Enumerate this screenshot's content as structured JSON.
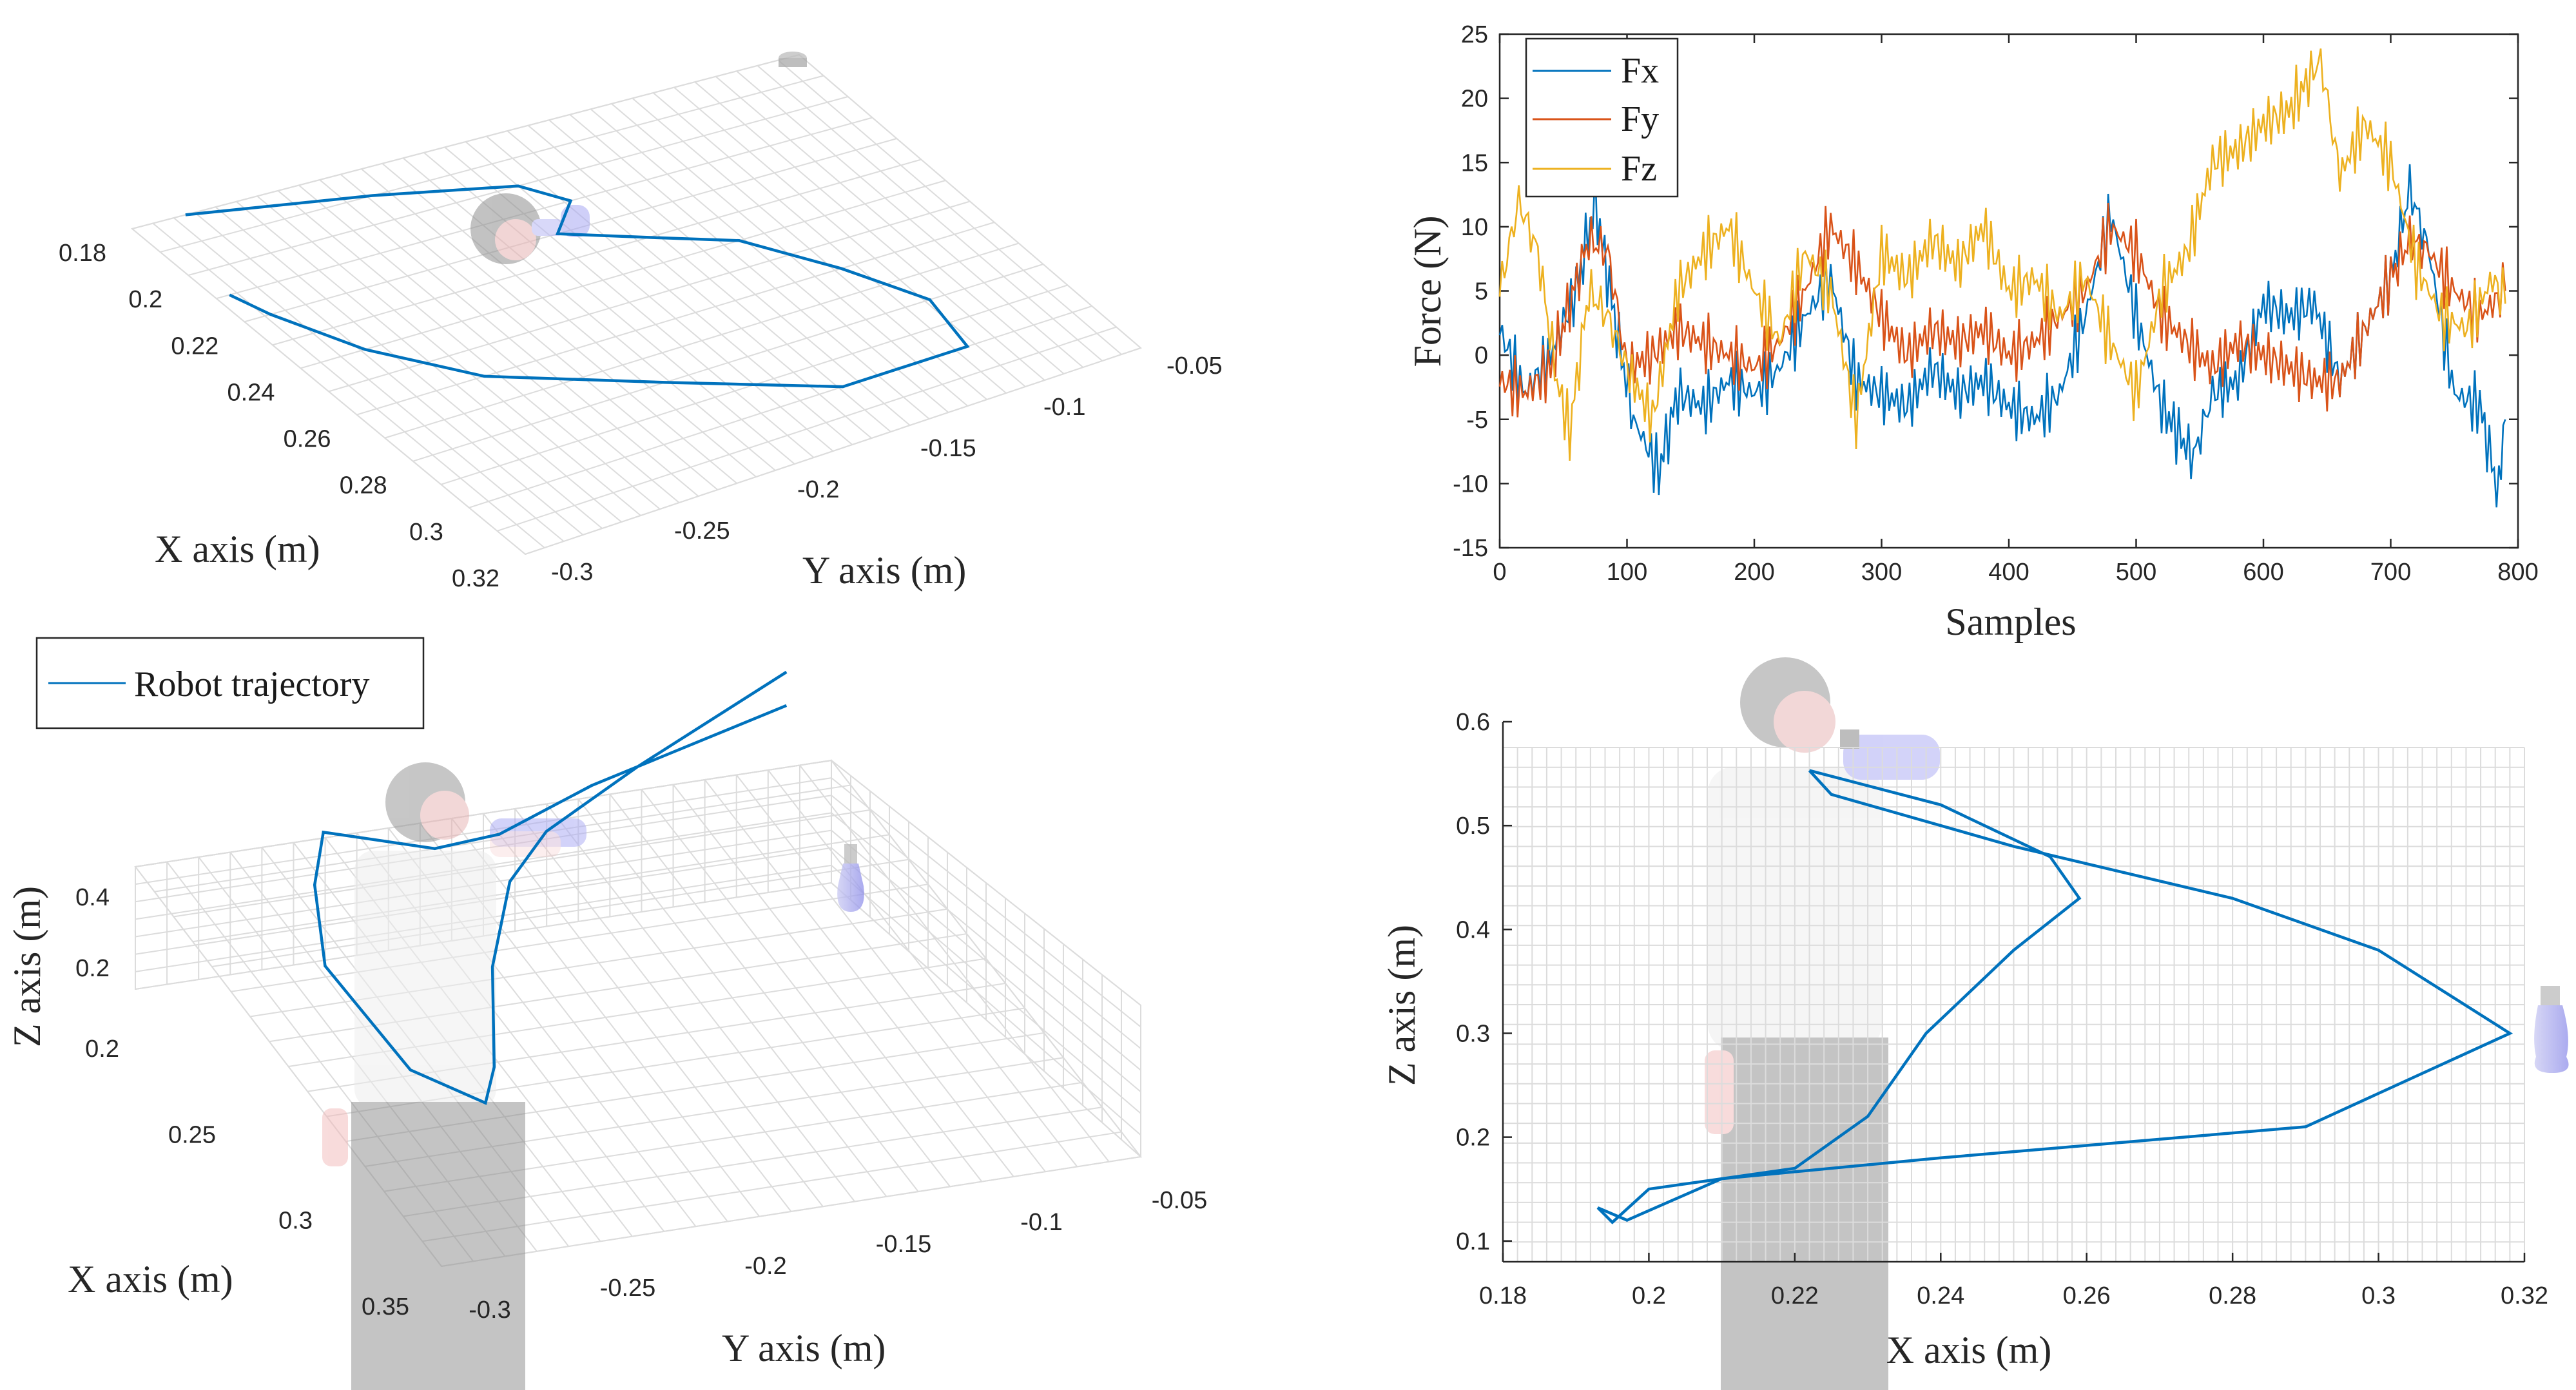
{
  "chart_data": [
    {
      "type": "line",
      "view": "3d-xy",
      "xlabel": "X axis (m)",
      "ylabel": "Y axis (m)",
      "xticks": [
        "0.18",
        "0.2",
        "0.22",
        "0.24",
        "0.26",
        "0.28",
        "0.3",
        "0.32"
      ],
      "yticks": [
        "-0.3",
        "-0.25",
        "-0.2",
        "-0.15",
        "-0.1",
        "-0.05"
      ],
      "xlim": [
        0.18,
        0.32
      ],
      "ylim": [
        -0.3,
        -0.05
      ],
      "series": [
        {
          "color": "#0072BD",
          "points": [
            [
              0.18,
              -0.07
            ],
            [
              0.19,
              -0.13
            ],
            [
              0.2,
              -0.175
            ],
            [
              0.21,
              -0.185
            ],
            [
              0.22,
              -0.17
            ],
            [
              0.23,
              -0.195
            ],
            [
              0.24,
              -0.22
            ],
            [
              0.26,
              -0.24
            ],
            [
              0.28,
              -0.255
            ],
            [
              0.3,
              -0.25
            ],
            [
              0.3,
              -0.2
            ],
            [
              0.28,
              -0.15
            ],
            [
              0.26,
              -0.1
            ],
            [
              0.24,
              -0.075
            ],
            [
              0.22,
              -0.06
            ],
            [
              0.21,
              -0.055
            ]
          ]
        }
      ]
    },
    {
      "type": "line",
      "xlabel": "Samples",
      "ylabel": "Force (N)",
      "xlim": [
        0,
        800
      ],
      "ylim": [
        -15,
        25
      ],
      "xticks": [
        "0",
        "100",
        "200",
        "300",
        "400",
        "500",
        "600",
        "700",
        "800"
      ],
      "yticks": [
        "-15",
        "-10",
        "-5",
        "0",
        "5",
        "10",
        "15",
        "20",
        "25"
      ],
      "legend_position": "top-left",
      "series": [
        {
          "name": "Fx",
          "color": "#0072BD",
          "values": [
            [
              0,
              2
            ],
            [
              20,
              -3
            ],
            [
              40,
              0
            ],
            [
              60,
              5
            ],
            [
              75,
              12
            ],
            [
              90,
              3
            ],
            [
              105,
              -5
            ],
            [
              125,
              -9
            ],
            [
              140,
              -3
            ],
            [
              160,
              -4
            ],
            [
              180,
              -2
            ],
            [
              200,
              -3
            ],
            [
              220,
              -1
            ],
            [
              240,
              3
            ],
            [
              260,
              6
            ],
            [
              280,
              -2
            ],
            [
              300,
              -3
            ],
            [
              320,
              -4
            ],
            [
              340,
              -1
            ],
            [
              360,
              -3
            ],
            [
              380,
              -2
            ],
            [
              400,
              -4
            ],
            [
              420,
              -5
            ],
            [
              440,
              -3
            ],
            [
              460,
              3
            ],
            [
              480,
              11
            ],
            [
              500,
              3
            ],
            [
              520,
              -4
            ],
            [
              545,
              -8
            ],
            [
              560,
              -3
            ],
            [
              580,
              -2
            ],
            [
              600,
              4
            ],
            [
              620,
              3
            ],
            [
              640,
              4
            ],
            [
              660,
              -2
            ],
            [
              680,
              2
            ],
            [
              700,
              6
            ],
            [
              715,
              13
            ],
            [
              730,
              8
            ],
            [
              750,
              -3
            ],
            [
              770,
              -4
            ],
            [
              785,
              -11
            ],
            [
              790,
              -5
            ]
          ]
        },
        {
          "name": "Fy",
          "color": "#D95319",
          "values": [
            [
              0,
              -2
            ],
            [
              20,
              -3
            ],
            [
              40,
              -1
            ],
            [
              55,
              4
            ],
            [
              70,
              9
            ],
            [
              85,
              8
            ],
            [
              100,
              -1
            ],
            [
              120,
              0
            ],
            [
              140,
              2
            ],
            [
              160,
              1
            ],
            [
              180,
              0
            ],
            [
              200,
              -1
            ],
            [
              220,
              1
            ],
            [
              240,
              5
            ],
            [
              260,
              10
            ],
            [
              280,
              7
            ],
            [
              300,
              3
            ],
            [
              320,
              0
            ],
            [
              340,
              2
            ],
            [
              360,
              1
            ],
            [
              380,
              2
            ],
            [
              400,
              0
            ],
            [
              420,
              1
            ],
            [
              440,
              3
            ],
            [
              460,
              5
            ],
            [
              480,
              10
            ],
            [
              500,
              8
            ],
            [
              520,
              3
            ],
            [
              540,
              1
            ],
            [
              560,
              -1
            ],
            [
              580,
              1
            ],
            [
              600,
              0
            ],
            [
              620,
              -1
            ],
            [
              640,
              -2
            ],
            [
              660,
              -2
            ],
            [
              680,
              2
            ],
            [
              700,
              6
            ],
            [
              715,
              9
            ],
            [
              730,
              8
            ],
            [
              750,
              5
            ],
            [
              770,
              3
            ],
            [
              790,
              5
            ]
          ]
        },
        {
          "name": "Fz",
          "color": "#EDB120",
          "values": [
            [
              0,
              5
            ],
            [
              15,
              12
            ],
            [
              30,
              8
            ],
            [
              45,
              -2
            ],
            [
              55,
              -6
            ],
            [
              70,
              5
            ],
            [
              85,
              3
            ],
            [
              100,
              -1
            ],
            [
              120,
              -5
            ],
            [
              140,
              5
            ],
            [
              160,
              8
            ],
            [
              180,
              10
            ],
            [
              200,
              5
            ],
            [
              220,
              1
            ],
            [
              240,
              8
            ],
            [
              260,
              5
            ],
            [
              280,
              -5
            ],
            [
              300,
              8
            ],
            [
              320,
              6
            ],
            [
              340,
              9
            ],
            [
              360,
              7
            ],
            [
              380,
              10
            ],
            [
              400,
              5
            ],
            [
              420,
              6
            ],
            [
              440,
              3
            ],
            [
              460,
              6
            ],
            [
              480,
              1
            ],
            [
              500,
              -3
            ],
            [
              520,
              5
            ],
            [
              540,
              8
            ],
            [
              560,
              15
            ],
            [
              580,
              16
            ],
            [
              600,
              18
            ],
            [
              620,
              19
            ],
            [
              645,
              23
            ],
            [
              660,
              14
            ],
            [
              680,
              18
            ],
            [
              700,
              15
            ],
            [
              720,
              7
            ],
            [
              740,
              3
            ],
            [
              760,
              2
            ],
            [
              780,
              6
            ],
            [
              790,
              4
            ]
          ]
        }
      ]
    },
    {
      "type": "line",
      "view": "3d-xyz",
      "xlabel": "X axis (m)",
      "ylabel": "Y axis (m)",
      "zlabel": "Z axis (m)",
      "xticks": [
        "0.2",
        "0.25",
        "0.3",
        "0.35"
      ],
      "yticks": [
        "-0.3",
        "-0.25",
        "-0.2",
        "-0.15",
        "-0.1",
        "-0.05"
      ],
      "zticks": [
        "0.2",
        "0.4"
      ],
      "legend": [
        "Robot trajectory"
      ],
      "legend_position": "top-left",
      "series": [
        {
          "name": "Robot trajectory",
          "color": "#0072BD",
          "points": [
            [
              0.22,
              -0.08,
              0.55
            ],
            [
              0.23,
              -0.14,
              0.42
            ],
            [
              0.24,
              -0.18,
              0.35
            ],
            [
              0.25,
              -0.2,
              0.3
            ],
            [
              0.27,
              -0.22,
              0.22
            ],
            [
              0.3,
              -0.24,
              0.17
            ],
            [
              0.31,
              -0.25,
              0.15
            ],
            [
              0.3,
              -0.27,
              0.2
            ],
            [
              0.27,
              -0.28,
              0.3
            ],
            [
              0.25,
              -0.27,
              0.38
            ],
            [
              0.24,
              -0.26,
              0.45
            ],
            [
              0.24,
              -0.22,
              0.35
            ],
            [
              0.23,
              -0.19,
              0.28
            ],
            [
              0.22,
              -0.15,
              0.3
            ],
            [
              0.22,
              -0.08,
              0.45
            ]
          ]
        }
      ]
    },
    {
      "type": "line",
      "view": "2d-xz",
      "xlabel": "X axis (m)",
      "ylabel": "Z axis (m)",
      "xlim": [
        0.18,
        0.32
      ],
      "ylim": [
        0.08,
        0.6
      ],
      "xticks": [
        "0.18",
        "0.2",
        "0.22",
        "0.24",
        "0.26",
        "0.28",
        "0.3",
        "0.32"
      ],
      "yticks": [
        "0.1",
        "0.2",
        "0.3",
        "0.4",
        "0.5",
        "0.6"
      ],
      "series": [
        {
          "color": "#0072BD",
          "values": [
            [
              0.222,
              0.553
            ],
            [
              0.24,
              0.52
            ],
            [
              0.255,
              0.47
            ],
            [
              0.259,
              0.43
            ],
            [
              0.25,
              0.38
            ],
            [
              0.238,
              0.3
            ],
            [
              0.23,
              0.22
            ],
            [
              0.22,
              0.17
            ],
            [
              0.2,
              0.15
            ],
            [
              0.195,
              0.118
            ],
            [
              0.193,
              0.132
            ],
            [
              0.197,
              0.12
            ],
            [
              0.21,
              0.16
            ],
            [
              0.24,
              0.18
            ],
            [
              0.29,
              0.21
            ],
            [
              0.318,
              0.3
            ],
            [
              0.3,
              0.38
            ],
            [
              0.28,
              0.43
            ],
            [
              0.25,
              0.48
            ],
            [
              0.225,
              0.53
            ],
            [
              0.222,
              0.553
            ]
          ]
        }
      ]
    }
  ]
}
